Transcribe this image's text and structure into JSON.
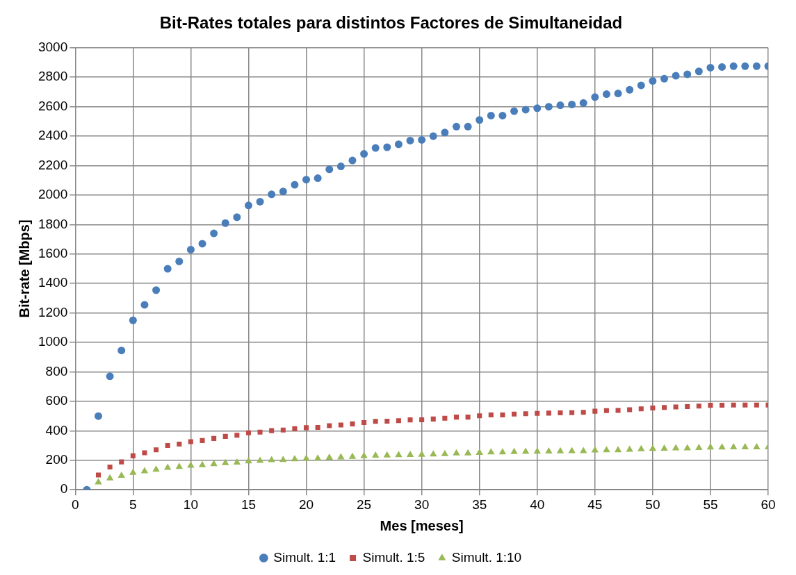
{
  "chart_data": {
    "type": "scatter",
    "title": "Bit-Rates totales para distintos Factores de Simultaneidad",
    "xlabel": "Mes [meses]",
    "ylabel": "Bit-rate [Mbps]",
    "x": [
      1,
      2,
      3,
      4,
      5,
      6,
      7,
      8,
      9,
      10,
      11,
      12,
      13,
      14,
      15,
      16,
      17,
      18,
      19,
      20,
      21,
      22,
      23,
      24,
      25,
      26,
      27,
      28,
      29,
      30,
      31,
      32,
      33,
      34,
      35,
      36,
      37,
      38,
      39,
      40,
      41,
      42,
      43,
      44,
      45,
      46,
      47,
      48,
      49,
      50,
      51,
      52,
      53,
      54,
      55,
      56,
      57,
      58,
      59,
      60
    ],
    "series": [
      {
        "name": "Simult. 1:1",
        "color": "#4a7ebb",
        "marker": "circle",
        "values": [
          0,
          500,
          770,
          945,
          1150,
          1255,
          1355,
          1500,
          1550,
          1630,
          1670,
          1740,
          1810,
          1850,
          1930,
          1955,
          2005,
          2025,
          2070,
          2105,
          2115,
          2175,
          2195,
          2235,
          2280,
          2320,
          2325,
          2345,
          2370,
          2375,
          2400,
          2425,
          2465,
          2465,
          2510,
          2540,
          2540,
          2570,
          2580,
          2590,
          2600,
          2610,
          2615,
          2625,
          2665,
          2685,
          2690,
          2715,
          2745,
          2775,
          2790,
          2810,
          2820,
          2840,
          2865,
          2870,
          2875,
          2875,
          2875,
          2875
        ]
      },
      {
        "name": "Simult. 1:5",
        "color": "#be4b48",
        "marker": "square",
        "values": [
          0,
          100,
          154,
          189,
          230,
          251,
          271,
          300,
          310,
          326,
          334,
          348,
          362,
          370,
          386,
          391,
          401,
          405,
          414,
          421,
          423,
          435,
          439,
          447,
          456,
          464,
          465,
          469,
          474,
          475,
          480,
          485,
          493,
          493,
          502,
          508,
          508,
          514,
          516,
          518,
          520,
          522,
          523,
          525,
          533,
          537,
          538,
          543,
          549,
          555,
          558,
          562,
          564,
          568,
          573,
          574,
          575,
          575,
          575,
          575
        ]
      },
      {
        "name": "Simult. 1:10",
        "color": "#98b954",
        "marker": "triangle",
        "values": [
          0,
          50,
          77,
          95,
          115,
          126,
          136,
          150,
          155,
          163,
          167,
          174,
          181,
          185,
          193,
          196,
          201,
          203,
          207,
          211,
          212,
          218,
          220,
          224,
          228,
          232,
          233,
          235,
          237,
          238,
          240,
          243,
          247,
          247,
          251,
          254,
          254,
          257,
          258,
          259,
          260,
          261,
          262,
          263,
          267,
          269,
          269,
          272,
          275,
          278,
          279,
          281,
          282,
          284,
          287,
          287,
          288,
          288,
          288,
          288
        ]
      }
    ],
    "xlim": [
      0,
      60
    ],
    "xticks": [
      0,
      5,
      10,
      15,
      20,
      25,
      30,
      35,
      40,
      45,
      50,
      55,
      60
    ],
    "ylim": [
      0,
      3000
    ],
    "yticks": [
      0,
      200,
      400,
      600,
      800,
      1000,
      1200,
      1400,
      1600,
      1800,
      2000,
      2200,
      2400,
      2600,
      2800,
      3000
    ],
    "grid": true,
    "legend": "bottom"
  }
}
